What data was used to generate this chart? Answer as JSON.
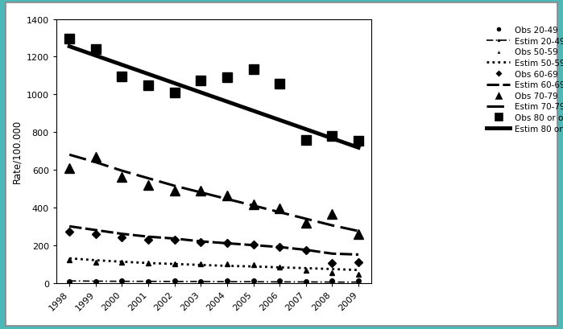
{
  "years": [
    1998,
    1999,
    2000,
    2001,
    2002,
    2003,
    2004,
    2005,
    2006,
    2007,
    2008,
    2009
  ],
  "obs_2049": [
    5,
    8,
    10,
    8,
    10,
    8,
    10,
    12,
    10,
    8,
    10,
    12
  ],
  "estim_2049": [
    10,
    9,
    8,
    8,
    7,
    7,
    6,
    6,
    5,
    5,
    4,
    4
  ],
  "obs_5059": [
    120,
    110,
    110,
    105,
    100,
    100,
    100,
    95,
    85,
    65,
    55,
    45
  ],
  "estim_5059": [
    130,
    120,
    112,
    105,
    100,
    95,
    90,
    87,
    82,
    78,
    73,
    68
  ],
  "obs_6069": [
    270,
    260,
    240,
    230,
    230,
    215,
    210,
    205,
    190,
    175,
    105,
    110
  ],
  "estim_6069": [
    300,
    280,
    260,
    245,
    235,
    220,
    210,
    200,
    190,
    175,
    155,
    150
  ],
  "obs_7079": [
    610,
    670,
    560,
    520,
    490,
    490,
    465,
    415,
    395,
    320,
    365,
    260
  ],
  "estim_7079": [
    680,
    640,
    595,
    555,
    515,
    480,
    445,
    410,
    375,
    340,
    305,
    275
  ],
  "obs_80over": [
    1295,
    1240,
    1095,
    1050,
    1010,
    1075,
    1090,
    1135,
    1055,
    760,
    780,
    755
  ],
  "estim_80over": [
    1300,
    1230,
    1165,
    1100,
    1040,
    985,
    930,
    875,
    820,
    800,
    790,
    800
  ],
  "ylabel": "Rate/100.000",
  "ylim": [
    0,
    1400
  ],
  "yticks": [
    0,
    200,
    400,
    600,
    800,
    1000,
    1200,
    1400
  ],
  "outer_color": "#4db8b8",
  "box_color": "#ffffff",
  "line_color": "#000000",
  "fig_width": 6.99,
  "fig_height": 4.1
}
